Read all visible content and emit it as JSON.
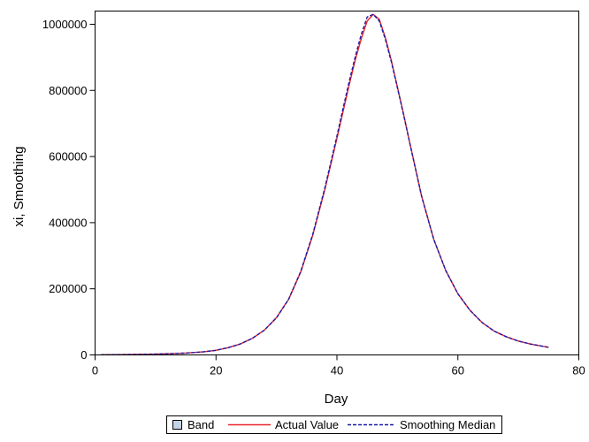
{
  "chart_data": {
    "type": "line",
    "title": "",
    "xlabel": "Day",
    "ylabel": "xi, Smoothing",
    "xlim": [
      0,
      80
    ],
    "ylim": [
      0,
      1040000
    ],
    "x_ticks": [
      0,
      20,
      40,
      60,
      80
    ],
    "y_ticks": [
      0,
      200000,
      400000,
      600000,
      800000,
      1000000
    ],
    "grid": false,
    "legend_position": "bottom",
    "colors": {
      "band": "#c5d3e8",
      "actual": "#e8242c",
      "median": "#1a1aa6"
    },
    "legend": [
      {
        "name": "Band",
        "style": "band-swatch"
      },
      {
        "name": "Actual Value",
        "style": "solid-red-line"
      },
      {
        "name": "Smoothing Median",
        "style": "dashed-blue-line"
      }
    ],
    "series": [
      {
        "name": "Actual Value",
        "x": [
          1,
          5,
          10,
          15,
          18,
          20,
          22,
          24,
          26,
          28,
          30,
          32,
          34,
          36,
          38,
          40,
          41,
          42,
          43,
          44,
          45,
          46,
          47,
          48,
          49,
          50,
          51,
          52,
          54,
          56,
          58,
          60,
          62,
          64,
          66,
          68,
          70,
          72,
          75
        ],
        "y": [
          500,
          1000,
          2500,
          5500,
          9500,
          14000,
          22000,
          33000,
          50000,
          75000,
          113000,
          168000,
          250000,
          362000,
          500000,
          655000,
          735000,
          815000,
          890000,
          955000,
          1010000,
          1030000,
          1015000,
          960000,
          890000,
          810000,
          730000,
          645000,
          480000,
          350000,
          255000,
          185000,
          135000,
          98000,
          72000,
          55000,
          42000,
          33000,
          23000
        ]
      },
      {
        "name": "Smoothing Median",
        "x": [
          1,
          5,
          10,
          15,
          18,
          20,
          22,
          24,
          26,
          28,
          30,
          32,
          34,
          36,
          38,
          40,
          41,
          42,
          43,
          44,
          45,
          46,
          47,
          48,
          49,
          50,
          51,
          52,
          54,
          56,
          58,
          60,
          62,
          64,
          66,
          68,
          70,
          72,
          75
        ],
        "y": [
          500,
          1000,
          2500,
          5500,
          9500,
          14000,
          22000,
          33000,
          50000,
          75000,
          112000,
          168000,
          252000,
          365000,
          505000,
          662000,
          745000,
          825000,
          900000,
          968000,
          1022000,
          1030000,
          1010000,
          955000,
          886000,
          808000,
          728000,
          644000,
          480000,
          350000,
          255000,
          185000,
          135000,
          98000,
          72000,
          55000,
          42000,
          33000,
          23000
        ]
      }
    ]
  }
}
